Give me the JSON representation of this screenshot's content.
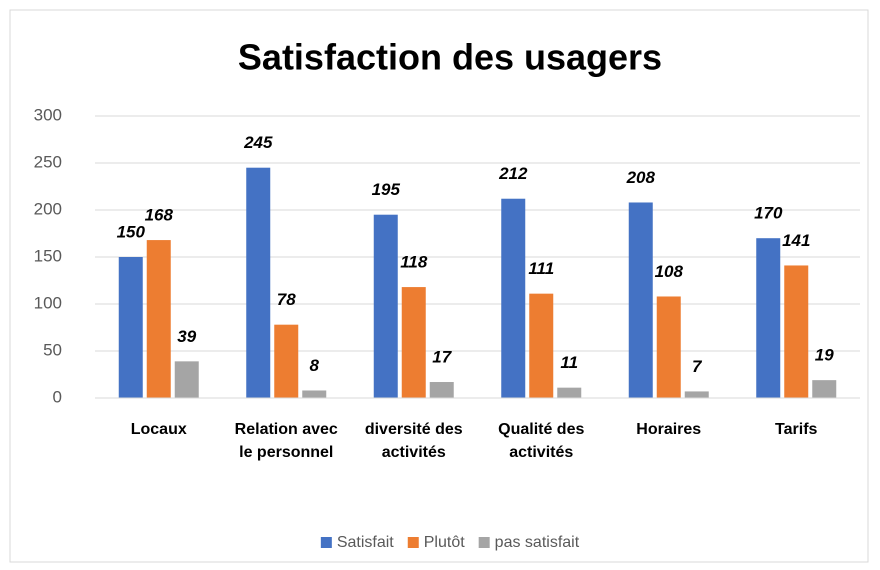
{
  "chart_data": {
    "type": "bar",
    "title": "Satisfaction  des usagers",
    "categories": [
      "Locaux",
      "Relation avec le personnel",
      "diversité des activités",
      "Qualité des activités",
      "Horaires",
      "Tarifs"
    ],
    "series": [
      {
        "name": "Satisfait",
        "color": "#4472c4",
        "values": [
          150,
          245,
          195,
          212,
          208,
          170
        ]
      },
      {
        "name": "Plutôt",
        "color": "#ed7d31",
        "values": [
          168,
          78,
          118,
          111,
          108,
          141
        ]
      },
      {
        "name": "pas satisfait",
        "color": "#a5a5a5",
        "values": [
          39,
          8,
          17,
          11,
          7,
          19
        ]
      }
    ],
    "ylim": [
      0,
      300
    ],
    "yticks": [
      0,
      50,
      100,
      150,
      200,
      250,
      300
    ],
    "grid": true,
    "legend": "bottom"
  }
}
